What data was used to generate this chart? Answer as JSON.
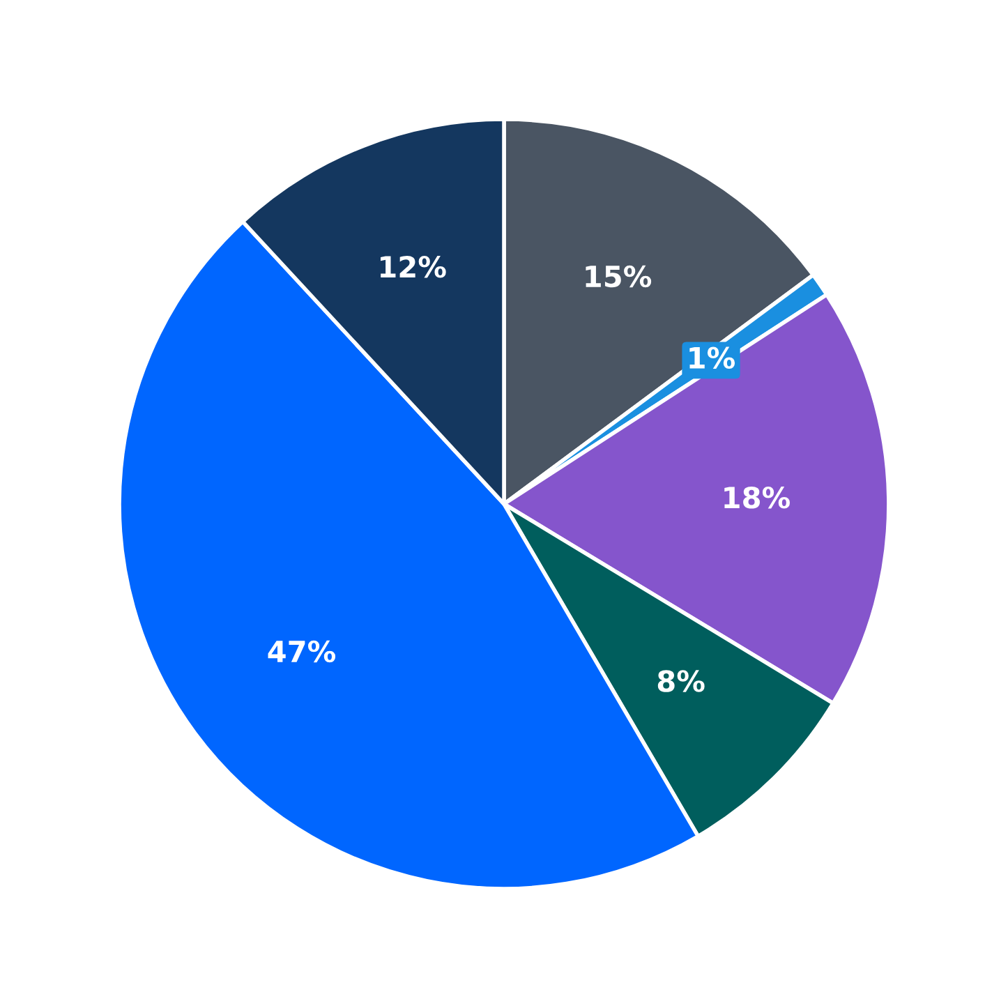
{
  "chart_data": {
    "type": "pie",
    "categories": [
      null,
      null,
      null,
      null,
      null,
      null
    ],
    "values": [
      15,
      1,
      18,
      8,
      47,
      12
    ],
    "value_labels": [
      "15%",
      "1%",
      "18%",
      "8%",
      "47%",
      "12%"
    ],
    "colors": [
      "#4a5563",
      "#1a8fe0",
      "#8555cc",
      "#005e5d",
      "#0066ff",
      "#14375f"
    ]
  }
}
